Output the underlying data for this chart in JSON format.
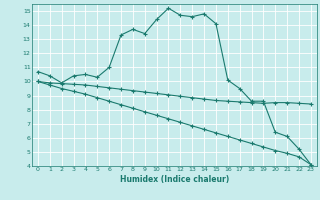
{
  "xlabel": "Humidex (Indice chaleur)",
  "background_color": "#c8ecec",
  "grid_color": "#ffffff",
  "line_color": "#1a7a6e",
  "xlim": [
    -0.5,
    23.5
  ],
  "ylim": [
    4,
    15.5
  ],
  "xticks": [
    0,
    1,
    2,
    3,
    4,
    5,
    6,
    7,
    8,
    9,
    10,
    11,
    12,
    13,
    14,
    15,
    16,
    17,
    18,
    19,
    20,
    21,
    22,
    23
  ],
  "yticks": [
    4,
    5,
    6,
    7,
    8,
    9,
    10,
    11,
    12,
    13,
    14,
    15
  ],
  "line1_x": [
    0,
    1,
    2,
    3,
    4,
    5,
    6,
    7,
    8,
    9,
    10,
    11,
    12,
    13,
    14,
    15,
    16,
    17,
    18,
    19,
    20,
    21,
    22,
    23
  ],
  "line1_y": [
    10.7,
    10.4,
    9.9,
    10.4,
    10.5,
    10.3,
    11.0,
    13.3,
    13.7,
    13.4,
    14.4,
    15.2,
    14.7,
    14.6,
    14.8,
    14.1,
    10.1,
    9.5,
    8.6,
    8.6,
    6.4,
    6.1,
    5.2,
    4.1
  ],
  "line2_x": [
    0,
    1,
    2,
    3,
    4,
    5,
    6,
    7,
    8,
    9,
    10,
    11,
    12,
    13,
    14,
    15,
    16,
    17,
    18,
    19,
    20,
    21,
    22,
    23
  ],
  "line2_y": [
    10.0,
    9.9,
    9.85,
    9.8,
    9.75,
    9.65,
    9.55,
    9.45,
    9.35,
    9.25,
    9.15,
    9.05,
    8.95,
    8.85,
    8.75,
    8.65,
    8.6,
    8.55,
    8.5,
    8.45,
    8.5,
    8.5,
    8.45,
    8.4
  ],
  "line3_x": [
    0,
    1,
    2,
    3,
    4,
    5,
    6,
    7,
    8,
    9,
    10,
    11,
    12,
    13,
    14,
    15,
    16,
    17,
    18,
    19,
    20,
    21,
    22,
    23
  ],
  "line3_y": [
    10.0,
    9.75,
    9.5,
    9.3,
    9.1,
    8.85,
    8.6,
    8.35,
    8.1,
    7.85,
    7.6,
    7.35,
    7.1,
    6.85,
    6.6,
    6.35,
    6.1,
    5.85,
    5.6,
    5.35,
    5.1,
    4.9,
    4.65,
    4.1
  ]
}
